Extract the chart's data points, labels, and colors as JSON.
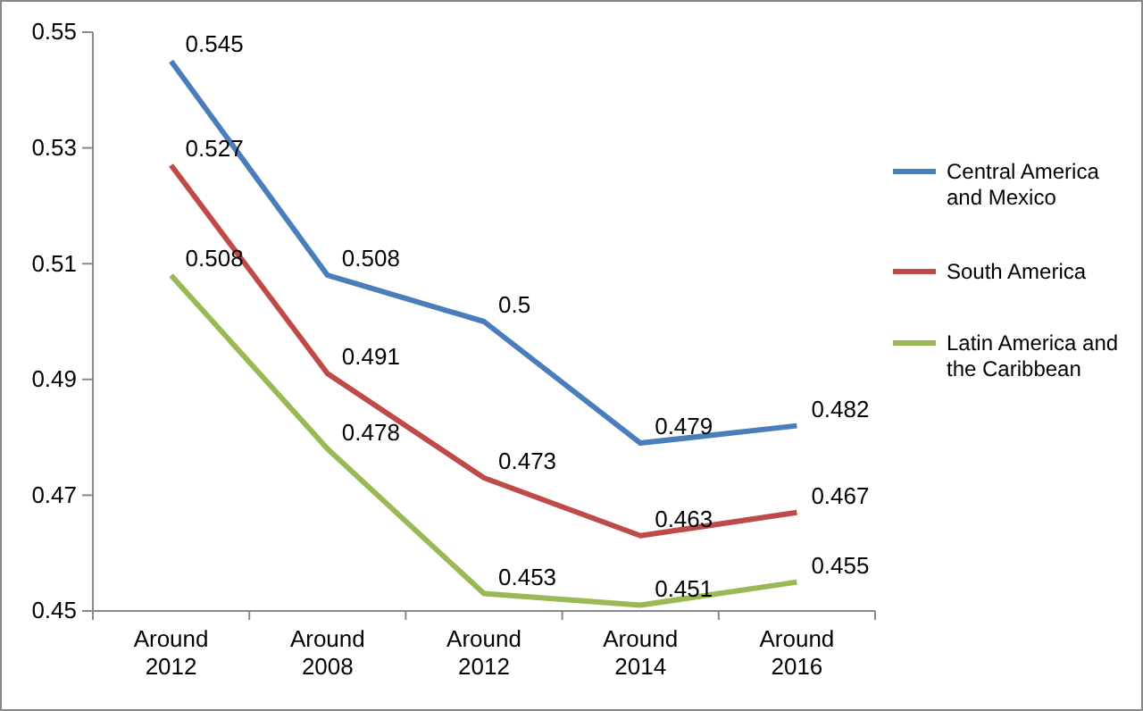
{
  "chart_data": {
    "type": "line",
    "categories": [
      "Around 2012",
      "Around 2008",
      "Around 2012",
      "Around 2014",
      "Around 2016"
    ],
    "series": [
      {
        "name": "Central America and Mexico",
        "color": "#4a7ebb",
        "values": [
          0.545,
          0.508,
          0.5,
          0.479,
          0.482
        ]
      },
      {
        "name": "South America",
        "color": "#be4b48",
        "values": [
          0.527,
          0.491,
          0.473,
          0.463,
          0.467
        ]
      },
      {
        "name": "Latin America and the Caribbean",
        "color": "#98b954",
        "values": [
          0.508,
          0.478,
          0.453,
          0.451,
          0.455
        ]
      }
    ],
    "ylim": [
      0.45,
      0.55
    ],
    "yticks": [
      0.45,
      0.47,
      0.49,
      0.51,
      0.53,
      0.55
    ],
    "grid": false,
    "legend": "right",
    "data_labels": true,
    "marker": "none",
    "line_style": "solid"
  }
}
